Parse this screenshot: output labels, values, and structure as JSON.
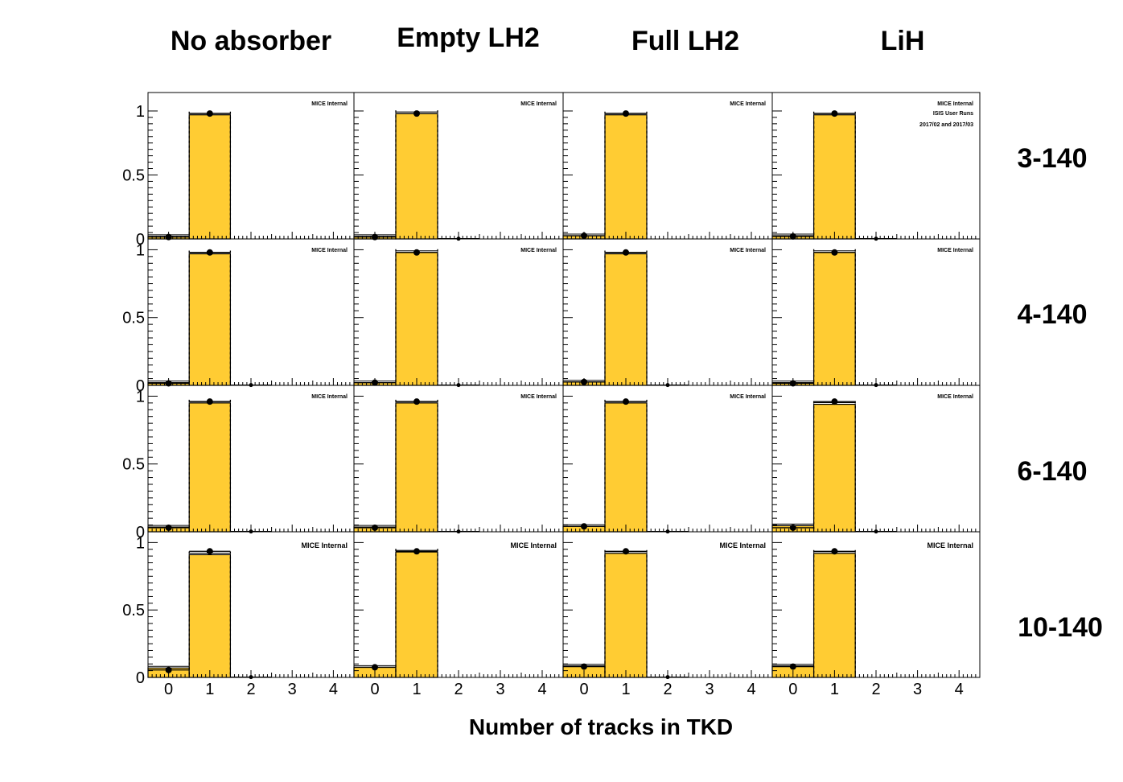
{
  "chart_data": {
    "type": "bar",
    "column_titles": [
      "No absorber",
      "Empty LH2",
      "Full LH2",
      "LiH"
    ],
    "row_labels": [
      "3-140",
      "4-140",
      "6-140",
      "10-140"
    ],
    "xlabel": "Number of tracks in TKD",
    "x_ticks": [
      "0",
      "1",
      "2",
      "3",
      "4"
    ],
    "y_ticks": [
      "0",
      "0.5",
      "1"
    ],
    "xlim": [
      -0.5,
      4.5
    ],
    "ylim": [
      0,
      1.05
    ],
    "categories": [
      0,
      1,
      2,
      3,
      4
    ],
    "annotations": {
      "label": "MICE Internal",
      "extra_lines": [
        "ISIS User Runs",
        "2017/02 and 2017/03"
      ]
    },
    "colors": {
      "fill": "#ffcc33",
      "line": "#000000"
    },
    "panels": [
      [
        {
          "mc": [
            0.02,
            0.97,
            0,
            0,
            0
          ],
          "data": [
            0.015,
            0.98,
            null,
            null,
            null
          ]
        },
        {
          "mc": [
            0.02,
            0.98,
            0,
            0,
            0
          ],
          "data": [
            0.015,
            0.98,
            0.002,
            null,
            null
          ]
        },
        {
          "mc": [
            0.025,
            0.97,
            0,
            0,
            0
          ],
          "data": [
            0.025,
            0.98,
            null,
            null,
            null
          ]
        },
        {
          "mc": [
            0.025,
            0.97,
            0,
            0,
            0
          ],
          "data": [
            0.02,
            0.98,
            0.002,
            null,
            null
          ]
        }
      ],
      [
        {
          "mc": [
            0.02,
            0.97,
            0,
            0,
            0
          ],
          "data": [
            0.015,
            0.98,
            0.002,
            null,
            null
          ]
        },
        {
          "mc": [
            0.02,
            0.98,
            0,
            0,
            0
          ],
          "data": [
            0.02,
            0.98,
            0.002,
            null,
            null
          ]
        },
        {
          "mc": [
            0.025,
            0.97,
            0,
            0,
            0
          ],
          "data": [
            0.025,
            0.98,
            0.002,
            null,
            null
          ]
        },
        {
          "mc": [
            0.02,
            0.98,
            0,
            0,
            0
          ],
          "data": [
            0.015,
            0.98,
            0.002,
            null,
            null
          ]
        }
      ],
      [
        {
          "mc": [
            0.035,
            0.95,
            0,
            0,
            0
          ],
          "data": [
            0.03,
            0.96,
            0.002,
            null,
            null
          ]
        },
        {
          "mc": [
            0.035,
            0.95,
            0,
            0,
            0
          ],
          "data": [
            0.03,
            0.96,
            0.002,
            null,
            null
          ]
        },
        {
          "mc": [
            0.04,
            0.95,
            0,
            0,
            0
          ],
          "data": [
            0.04,
            0.96,
            0.002,
            null,
            null
          ]
        },
        {
          "mc": [
            0.045,
            0.94,
            0,
            0,
            0
          ],
          "data": [
            0.03,
            0.96,
            0.002,
            null,
            null
          ]
        }
      ],
      [
        {
          "mc": [
            0.07,
            0.91,
            0,
            0,
            0
          ],
          "data": [
            0.055,
            0.935,
            0.002,
            null,
            null
          ]
        },
        {
          "mc": [
            0.075,
            0.93,
            0,
            0,
            0
          ],
          "data": [
            0.075,
            0.935,
            null,
            null,
            null
          ]
        },
        {
          "mc": [
            0.085,
            0.92,
            0,
            0,
            0
          ],
          "data": [
            0.08,
            0.935,
            0.002,
            null,
            null
          ]
        },
        {
          "mc": [
            0.085,
            0.92,
            0,
            0,
            0
          ],
          "data": [
            0.08,
            0.935,
            null,
            null,
            null
          ]
        }
      ]
    ]
  }
}
